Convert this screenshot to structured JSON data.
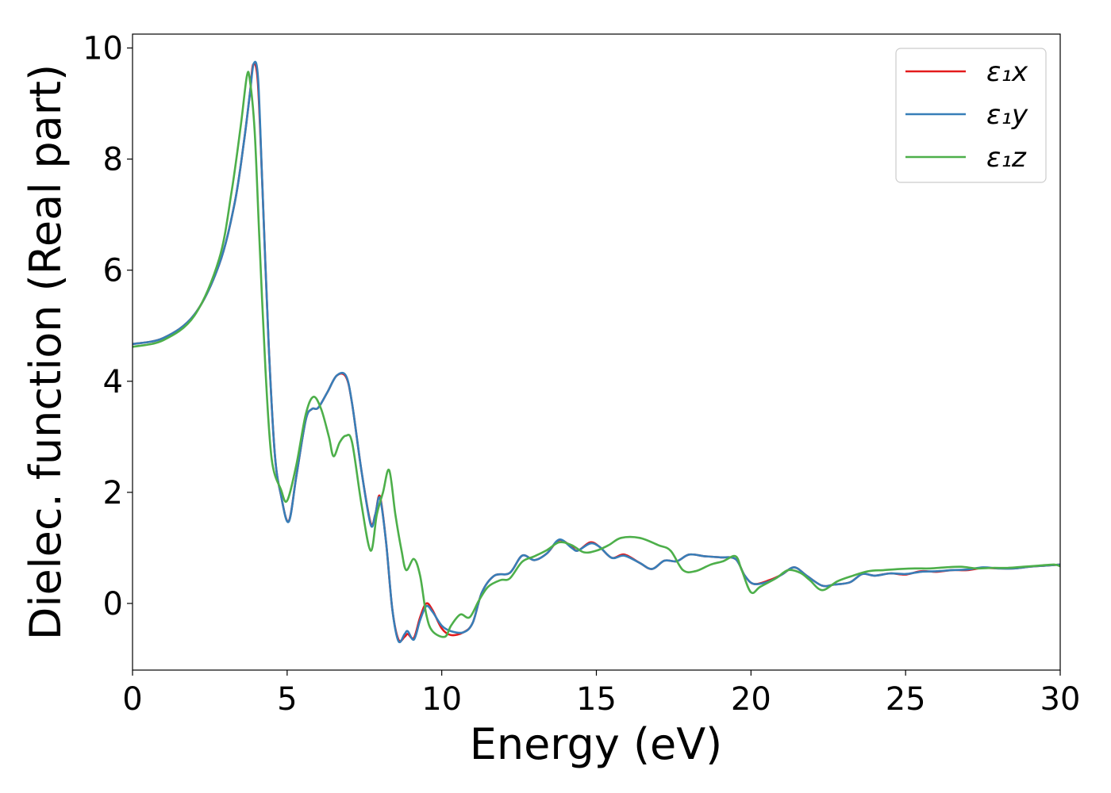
{
  "chart_data": {
    "type": "line",
    "title": "",
    "xlabel": "Energy (eV)",
    "ylabel": "Dielec. function (Real part)",
    "xlim": [
      0,
      30
    ],
    "ylim": [
      -1.2,
      10.25
    ],
    "xticks": [
      0,
      5,
      10,
      15,
      20,
      25,
      30
    ],
    "yticks": [
      0,
      2,
      4,
      6,
      8,
      10
    ],
    "grid": false,
    "legend_position": "top-right",
    "series": [
      {
        "name": "ε₁x",
        "color": "#e41a1c",
        "points": [
          [
            0,
            4.67
          ],
          [
            1.0,
            4.78
          ],
          [
            2.0,
            5.2
          ],
          [
            2.8,
            6.1
          ],
          [
            3.3,
            7.2
          ],
          [
            3.6,
            8.3
          ],
          [
            3.8,
            9.2
          ],
          [
            3.9,
            9.7
          ],
          [
            4.05,
            9.4
          ],
          [
            4.2,
            7.5
          ],
          [
            4.4,
            4.7
          ],
          [
            4.6,
            2.7
          ],
          [
            4.8,
            1.95
          ],
          [
            5.05,
            1.48
          ],
          [
            5.3,
            2.3
          ],
          [
            5.6,
            3.3
          ],
          [
            5.8,
            3.5
          ],
          [
            6.0,
            3.52
          ],
          [
            6.3,
            3.8
          ],
          [
            6.6,
            4.1
          ],
          [
            6.9,
            4.08
          ],
          [
            7.1,
            3.6
          ],
          [
            7.4,
            2.4
          ],
          [
            7.7,
            1.45
          ],
          [
            7.85,
            1.6
          ],
          [
            8.0,
            1.93
          ],
          [
            8.2,
            1.1
          ],
          [
            8.4,
            -0.1
          ],
          [
            8.6,
            -0.65
          ],
          [
            8.8,
            -0.6
          ],
          [
            8.9,
            -0.55
          ],
          [
            9.1,
            -0.62
          ],
          [
            9.3,
            -0.25
          ],
          [
            9.5,
            0.0
          ],
          [
            9.7,
            -0.12
          ],
          [
            10.0,
            -0.45
          ],
          [
            10.3,
            -0.57
          ],
          [
            10.7,
            -0.52
          ],
          [
            11.0,
            -0.35
          ],
          [
            11.3,
            0.2
          ],
          [
            11.7,
            0.5
          ],
          [
            12.2,
            0.55
          ],
          [
            12.6,
            0.86
          ],
          [
            13.0,
            0.78
          ],
          [
            13.4,
            0.9
          ],
          [
            13.8,
            1.14
          ],
          [
            14.2,
            1.02
          ],
          [
            14.4,
            0.95
          ],
          [
            14.8,
            1.1
          ],
          [
            15.1,
            1.02
          ],
          [
            15.5,
            0.82
          ],
          [
            15.9,
            0.88
          ],
          [
            16.4,
            0.73
          ],
          [
            16.8,
            0.62
          ],
          [
            17.2,
            0.77
          ],
          [
            17.6,
            0.76
          ],
          [
            18.0,
            0.88
          ],
          [
            18.5,
            0.85
          ],
          [
            19.0,
            0.83
          ],
          [
            19.5,
            0.8
          ],
          [
            19.8,
            0.5
          ],
          [
            20.1,
            0.35
          ],
          [
            20.6,
            0.42
          ],
          [
            21.0,
            0.52
          ],
          [
            21.4,
            0.65
          ],
          [
            21.8,
            0.5
          ],
          [
            22.3,
            0.32
          ],
          [
            22.7,
            0.34
          ],
          [
            23.2,
            0.38
          ],
          [
            23.6,
            0.53
          ],
          [
            24.0,
            0.5
          ],
          [
            24.5,
            0.54
          ],
          [
            25.0,
            0.52
          ],
          [
            25.5,
            0.58
          ],
          [
            26.0,
            0.57
          ],
          [
            26.5,
            0.6
          ],
          [
            27.0,
            0.6
          ],
          [
            27.5,
            0.64
          ],
          [
            28.0,
            0.63
          ],
          [
            28.5,
            0.63
          ],
          [
            29.0,
            0.66
          ],
          [
            29.5,
            0.68
          ],
          [
            30.0,
            0.7
          ]
        ]
      },
      {
        "name": "ε₁y",
        "color": "#377eb8",
        "points": [
          [
            0,
            4.67
          ],
          [
            1.0,
            4.78
          ],
          [
            2.0,
            5.2
          ],
          [
            2.8,
            6.1
          ],
          [
            3.3,
            7.2
          ],
          [
            3.6,
            8.3
          ],
          [
            3.8,
            9.2
          ],
          [
            3.92,
            9.72
          ],
          [
            4.06,
            9.45
          ],
          [
            4.2,
            7.5
          ],
          [
            4.4,
            4.7
          ],
          [
            4.6,
            2.7
          ],
          [
            4.8,
            1.95
          ],
          [
            5.05,
            1.47
          ],
          [
            5.3,
            2.3
          ],
          [
            5.6,
            3.3
          ],
          [
            5.8,
            3.5
          ],
          [
            6.0,
            3.52
          ],
          [
            6.3,
            3.8
          ],
          [
            6.6,
            4.1
          ],
          [
            6.9,
            4.1
          ],
          [
            7.1,
            3.6
          ],
          [
            7.4,
            2.4
          ],
          [
            7.7,
            1.42
          ],
          [
            7.85,
            1.6
          ],
          [
            8.0,
            1.9
          ],
          [
            8.2,
            1.1
          ],
          [
            8.4,
            -0.1
          ],
          [
            8.6,
            -0.68
          ],
          [
            8.8,
            -0.55
          ],
          [
            8.9,
            -0.5
          ],
          [
            9.1,
            -0.65
          ],
          [
            9.3,
            -0.3
          ],
          [
            9.5,
            -0.05
          ],
          [
            9.7,
            -0.15
          ],
          [
            10.0,
            -0.4
          ],
          [
            10.3,
            -0.5
          ],
          [
            10.7,
            -0.52
          ],
          [
            11.0,
            -0.35
          ],
          [
            11.3,
            0.2
          ],
          [
            11.7,
            0.5
          ],
          [
            12.2,
            0.55
          ],
          [
            12.6,
            0.86
          ],
          [
            13.0,
            0.78
          ],
          [
            13.4,
            0.9
          ],
          [
            13.8,
            1.15
          ],
          [
            14.2,
            1.0
          ],
          [
            14.4,
            0.95
          ],
          [
            14.8,
            1.08
          ],
          [
            15.1,
            1.02
          ],
          [
            15.5,
            0.82
          ],
          [
            15.9,
            0.86
          ],
          [
            16.4,
            0.73
          ],
          [
            16.8,
            0.62
          ],
          [
            17.2,
            0.77
          ],
          [
            17.6,
            0.76
          ],
          [
            18.0,
            0.88
          ],
          [
            18.5,
            0.85
          ],
          [
            19.0,
            0.83
          ],
          [
            19.5,
            0.8
          ],
          [
            19.8,
            0.5
          ],
          [
            20.1,
            0.35
          ],
          [
            20.6,
            0.4
          ],
          [
            21.0,
            0.52
          ],
          [
            21.4,
            0.65
          ],
          [
            21.8,
            0.5
          ],
          [
            22.3,
            0.32
          ],
          [
            22.7,
            0.34
          ],
          [
            23.2,
            0.38
          ],
          [
            23.6,
            0.53
          ],
          [
            24.0,
            0.5
          ],
          [
            24.5,
            0.54
          ],
          [
            25.0,
            0.53
          ],
          [
            25.5,
            0.57
          ],
          [
            26.0,
            0.58
          ],
          [
            26.5,
            0.6
          ],
          [
            27.0,
            0.61
          ],
          [
            27.5,
            0.65
          ],
          [
            28.0,
            0.63
          ],
          [
            28.5,
            0.63
          ],
          [
            29.0,
            0.66
          ],
          [
            29.5,
            0.68
          ],
          [
            30.0,
            0.7
          ]
        ]
      },
      {
        "name": "ε₁z",
        "color": "#4daf4a",
        "points": [
          [
            0,
            4.62
          ],
          [
            1.0,
            4.74
          ],
          [
            2.0,
            5.18
          ],
          [
            2.8,
            6.2
          ],
          [
            3.2,
            7.4
          ],
          [
            3.5,
            8.6
          ],
          [
            3.7,
            9.5
          ],
          [
            3.8,
            9.4
          ],
          [
            3.95,
            8.5
          ],
          [
            4.1,
            6.6
          ],
          [
            4.3,
            4.2
          ],
          [
            4.5,
            2.6
          ],
          [
            4.8,
            2.05
          ],
          [
            5.0,
            1.85
          ],
          [
            5.3,
            2.5
          ],
          [
            5.6,
            3.4
          ],
          [
            5.85,
            3.72
          ],
          [
            6.1,
            3.5
          ],
          [
            6.35,
            3.0
          ],
          [
            6.5,
            2.65
          ],
          [
            6.7,
            2.9
          ],
          [
            6.9,
            3.02
          ],
          [
            7.1,
            2.9
          ],
          [
            7.4,
            1.8
          ],
          [
            7.7,
            0.95
          ],
          [
            7.9,
            1.6
          ],
          [
            8.1,
            2.0
          ],
          [
            8.3,
            2.4
          ],
          [
            8.5,
            1.6
          ],
          [
            8.7,
            0.95
          ],
          [
            8.85,
            0.6
          ],
          [
            9.1,
            0.8
          ],
          [
            9.3,
            0.5
          ],
          [
            9.5,
            -0.2
          ],
          [
            9.7,
            -0.5
          ],
          [
            10.1,
            -0.6
          ],
          [
            10.3,
            -0.4
          ],
          [
            10.6,
            -0.2
          ],
          [
            10.9,
            -0.25
          ],
          [
            11.2,
            0.05
          ],
          [
            11.5,
            0.3
          ],
          [
            11.9,
            0.42
          ],
          [
            12.2,
            0.45
          ],
          [
            12.6,
            0.75
          ],
          [
            13.0,
            0.85
          ],
          [
            13.4,
            0.96
          ],
          [
            13.8,
            1.1
          ],
          [
            14.2,
            1.05
          ],
          [
            14.6,
            0.92
          ],
          [
            15.0,
            0.95
          ],
          [
            15.4,
            1.05
          ],
          [
            15.8,
            1.18
          ],
          [
            16.4,
            1.18
          ],
          [
            17.0,
            1.05
          ],
          [
            17.4,
            0.95
          ],
          [
            17.8,
            0.6
          ],
          [
            18.2,
            0.58
          ],
          [
            18.7,
            0.7
          ],
          [
            19.1,
            0.76
          ],
          [
            19.5,
            0.85
          ],
          [
            19.7,
            0.6
          ],
          [
            20.0,
            0.2
          ],
          [
            20.3,
            0.3
          ],
          [
            20.8,
            0.45
          ],
          [
            21.2,
            0.6
          ],
          [
            21.6,
            0.55
          ],
          [
            21.9,
            0.42
          ],
          [
            22.3,
            0.24
          ],
          [
            22.8,
            0.4
          ],
          [
            23.3,
            0.5
          ],
          [
            23.8,
            0.58
          ],
          [
            24.3,
            0.6
          ],
          [
            24.8,
            0.62
          ],
          [
            25.3,
            0.63
          ],
          [
            25.8,
            0.63
          ],
          [
            26.3,
            0.65
          ],
          [
            26.8,
            0.66
          ],
          [
            27.3,
            0.63
          ],
          [
            27.8,
            0.64
          ],
          [
            28.3,
            0.64
          ],
          [
            28.8,
            0.66
          ],
          [
            29.3,
            0.68
          ],
          [
            29.8,
            0.7
          ],
          [
            30.0,
            0.67
          ]
        ]
      }
    ]
  }
}
